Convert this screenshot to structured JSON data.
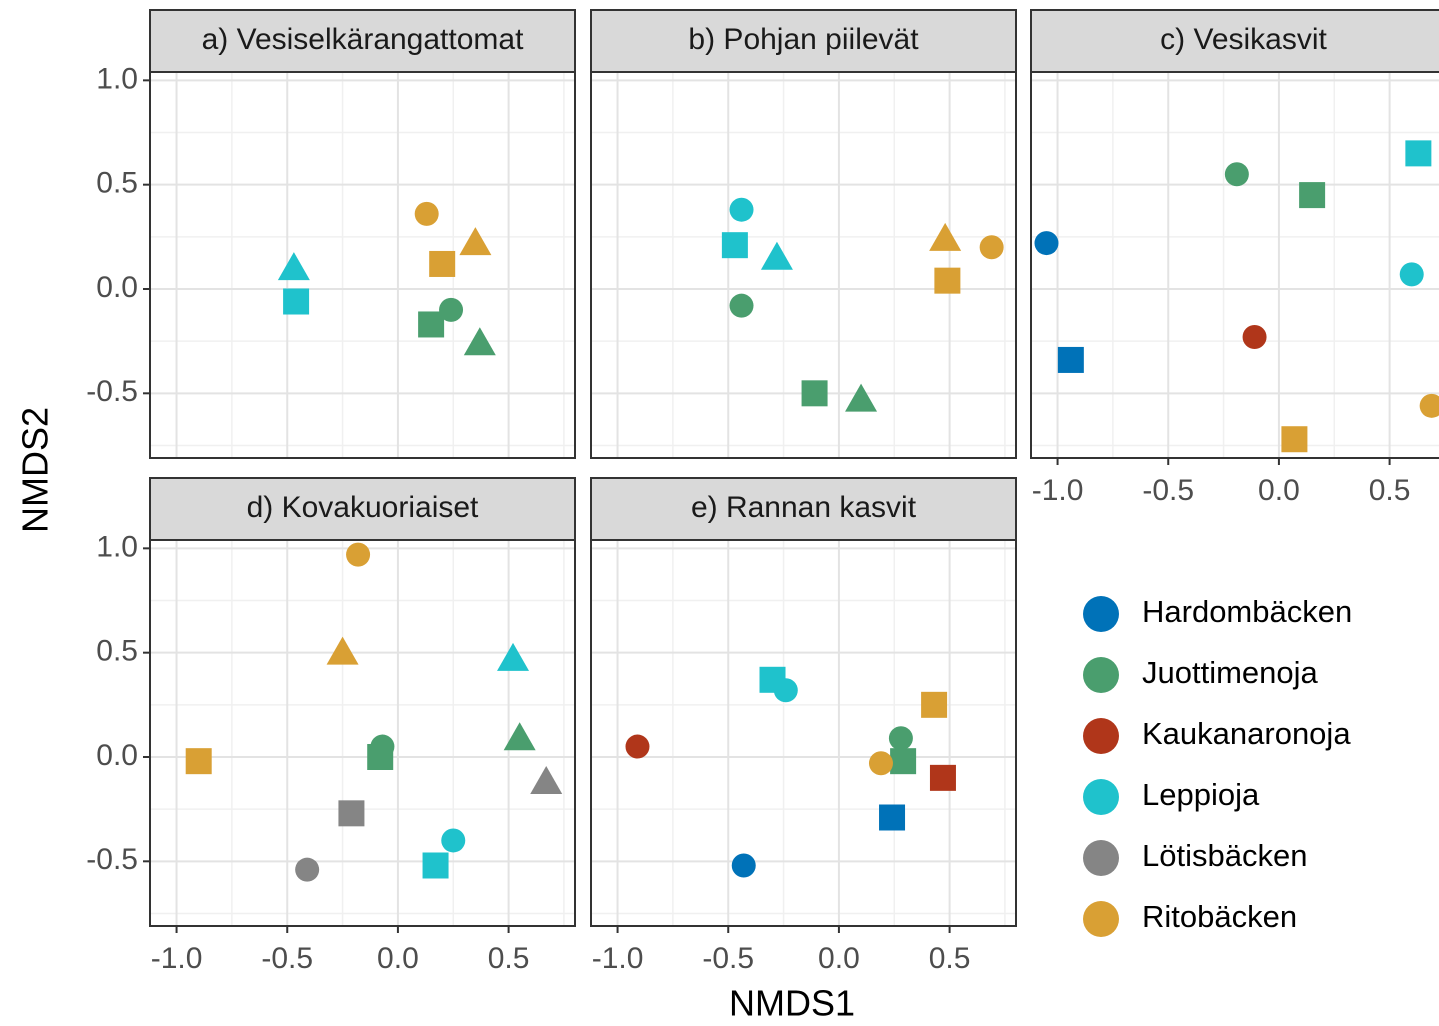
{
  "chart_data": {
    "type": "scatter",
    "xlabel": "NMDS1",
    "ylabel": "NMDS2",
    "xlim": [
      -1.12,
      0.8
    ],
    "ylim": [
      -0.81,
      1.04
    ],
    "xticks": [
      {
        "value": -1.0,
        "label": "-1.0"
      },
      -0.5,
      {
        "value": 0,
        "label": "0.0"
      },
      0.5
    ],
    "yticks": [
      -0.5,
      {
        "value": 0,
        "label": "0.0"
      },
      0.5,
      {
        "value": 1.0,
        "label": "1.0"
      }
    ],
    "minor_xticks": [
      -0.75,
      -0.25,
      0.25,
      0.75
    ],
    "minor_yticks": [
      -0.75,
      -0.25,
      0.25,
      0.75
    ],
    "grid": true,
    "legend": [
      {
        "name": "Hardombäcken",
        "color": "#0072b8"
      },
      {
        "name": "Juottimenoja",
        "color": "#4a9e6e"
      },
      {
        "name": "Kaukanaronoja",
        "color": "#b0361a"
      },
      {
        "name": "Leppioja",
        "color": "#1fc2cc"
      },
      {
        "name": "Lötisbäcken",
        "color": "#858585"
      },
      {
        "name": "Ritobäcken",
        "color": "#d9a034"
      }
    ],
    "panels": [
      {
        "title": "a) Vesiselkärangattomat",
        "points": [
          {
            "group": "Leppioja",
            "shape": "triangle",
            "x": -0.47,
            "y": 0.1
          },
          {
            "group": "Leppioja",
            "shape": "square",
            "x": -0.46,
            "y": -0.06
          },
          {
            "group": "Ritobäcken",
            "shape": "circle",
            "x": 0.13,
            "y": 0.36
          },
          {
            "group": "Ritobäcken",
            "shape": "square",
            "x": 0.2,
            "y": 0.12
          },
          {
            "group": "Ritobäcken",
            "shape": "triangle",
            "x": 0.35,
            "y": 0.22
          },
          {
            "group": "Juottimenoja",
            "shape": "circle",
            "x": 0.24,
            "y": -0.1
          },
          {
            "group": "Juottimenoja",
            "shape": "square",
            "x": 0.15,
            "y": -0.17
          },
          {
            "group": "Juottimenoja",
            "shape": "triangle",
            "x": 0.37,
            "y": -0.26
          }
        ]
      },
      {
        "title": "b) Pohjan piilevät",
        "points": [
          {
            "group": "Leppioja",
            "shape": "circle",
            "x": -0.44,
            "y": 0.38
          },
          {
            "group": "Leppioja",
            "shape": "square",
            "x": -0.47,
            "y": 0.21
          },
          {
            "group": "Leppioja",
            "shape": "triangle",
            "x": -0.28,
            "y": 0.15
          },
          {
            "group": "Juottimenoja",
            "shape": "circle",
            "x": -0.44,
            "y": -0.08
          },
          {
            "group": "Juottimenoja",
            "shape": "square",
            "x": -0.11,
            "y": -0.5
          },
          {
            "group": "Juottimenoja",
            "shape": "triangle",
            "x": 0.1,
            "y": -0.53
          },
          {
            "group": "Ritobäcken",
            "shape": "triangle",
            "x": 0.48,
            "y": 0.24
          },
          {
            "group": "Ritobäcken",
            "shape": "circle",
            "x": 0.69,
            "y": 0.2
          },
          {
            "group": "Ritobäcken",
            "shape": "square",
            "x": 0.49,
            "y": 0.04
          }
        ]
      },
      {
        "title": "c) Vesikasvit",
        "points": [
          {
            "group": "Hardombäcken",
            "shape": "circle",
            "x": -1.05,
            "y": 0.22
          },
          {
            "group": "Hardombäcken",
            "shape": "square",
            "x": -0.94,
            "y": -0.34
          },
          {
            "group": "Juottimenoja",
            "shape": "circle",
            "x": -0.19,
            "y": 0.55
          },
          {
            "group": "Juottimenoja",
            "shape": "square",
            "x": 0.15,
            "y": 0.45
          },
          {
            "group": "Leppioja",
            "shape": "square",
            "x": 0.63,
            "y": 0.65
          },
          {
            "group": "Leppioja",
            "shape": "circle",
            "x": 0.6,
            "y": 0.07
          },
          {
            "group": "Kaukanaronoja",
            "shape": "circle",
            "x": -0.11,
            "y": -0.23
          },
          {
            "group": "Ritobäcken",
            "shape": "square",
            "x": 0.07,
            "y": -0.72
          },
          {
            "group": "Ritobäcken",
            "shape": "circle",
            "x": 0.69,
            "y": -0.56
          }
        ]
      },
      {
        "title": "d) Kovakuoriaiset",
        "points": [
          {
            "group": "Ritobäcken",
            "shape": "circle",
            "x": -0.18,
            "y": 0.97
          },
          {
            "group": "Ritobäcken",
            "shape": "triangle",
            "x": -0.25,
            "y": 0.5
          },
          {
            "group": "Ritobäcken",
            "shape": "square",
            "x": -0.9,
            "y": -0.02
          },
          {
            "group": "Leppioja",
            "shape": "triangle",
            "x": 0.52,
            "y": 0.47
          },
          {
            "group": "Juottimenoja",
            "shape": "circle",
            "x": -0.07,
            "y": 0.05
          },
          {
            "group": "Juottimenoja",
            "shape": "square",
            "x": -0.08,
            "y": 0.0
          },
          {
            "group": "Juottimenoja",
            "shape": "triangle",
            "x": 0.55,
            "y": 0.09
          },
          {
            "group": "Lötisbäcken",
            "shape": "triangle",
            "x": 0.67,
            "y": -0.12
          },
          {
            "group": "Lötisbäcken",
            "shape": "square",
            "x": -0.21,
            "y": -0.27
          },
          {
            "group": "Lötisbäcken",
            "shape": "circle",
            "x": -0.41,
            "y": -0.54
          },
          {
            "group": "Leppioja",
            "shape": "circle",
            "x": 0.25,
            "y": -0.4
          },
          {
            "group": "Leppioja",
            "shape": "square",
            "x": 0.17,
            "y": -0.52
          }
        ]
      },
      {
        "title": "e) Rannan kasvit",
        "points": [
          {
            "group": "Kaukanaronoja",
            "shape": "circle",
            "x": -0.91,
            "y": 0.05
          },
          {
            "group": "Leppioja",
            "shape": "square",
            "x": -0.3,
            "y": 0.37
          },
          {
            "group": "Leppioja",
            "shape": "circle",
            "x": -0.24,
            "y": 0.32
          },
          {
            "group": "Juottimenoja",
            "shape": "circle",
            "x": 0.28,
            "y": 0.09
          },
          {
            "group": "Juottimenoja",
            "shape": "square",
            "x": 0.29,
            "y": -0.02
          },
          {
            "group": "Ritobäcken",
            "shape": "circle",
            "x": 0.19,
            "y": -0.03
          },
          {
            "group": "Ritobäcken",
            "shape": "square",
            "x": 0.43,
            "y": 0.25
          },
          {
            "group": "Kaukanaronoja",
            "shape": "square",
            "x": 0.47,
            "y": -0.1
          },
          {
            "group": "Hardombäcken",
            "shape": "square",
            "x": 0.24,
            "y": -0.29
          },
          {
            "group": "Hardombäcken",
            "shape": "circle",
            "x": -0.43,
            "y": -0.52
          }
        ]
      }
    ]
  }
}
